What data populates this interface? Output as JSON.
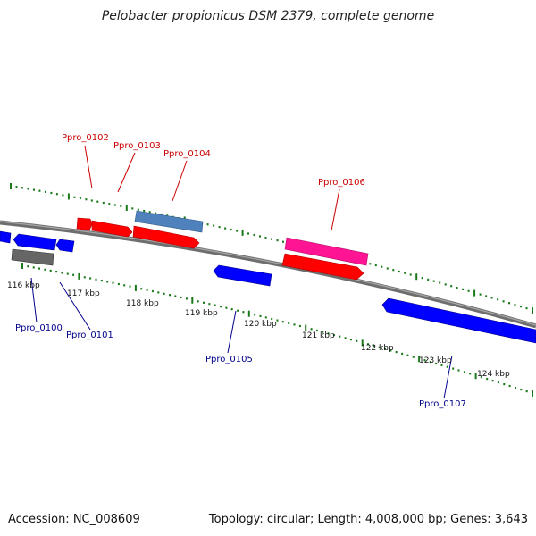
{
  "title": "Pelobacter propionicus DSM 2379, complete genome",
  "footer": {
    "accession": "Accession: NC_008609",
    "topology": "Topology: circular; Length: 4,008,000 bp; Genes: 3,643"
  },
  "colors": {
    "forward_gene": "#ff0000",
    "reverse_gene": "#0000ff",
    "blue_feature": "#4f81bd",
    "pink_feature": "#ff1493",
    "gray_feature": "#666666",
    "backbone": "#777777",
    "tick": "#1a7a1a",
    "forward_label": "#cc0000",
    "reverse_label": "#00008b"
  },
  "kbp_labels": [
    "116 kbp",
    "117 kbp",
    "118 kbp",
    "119 kbp",
    "120 kbp",
    "121 kbp",
    "122 kbp",
    "123 kbp",
    "124 kbp"
  ],
  "gene_labels": {
    "forward": [
      "Ppro_0102",
      "Ppro_0103",
      "Ppro_0104",
      "Ppro_0106"
    ],
    "reverse": [
      "Ppro_0100",
      "Ppro_0101",
      "Ppro_0105",
      "Ppro_0107"
    ]
  }
}
